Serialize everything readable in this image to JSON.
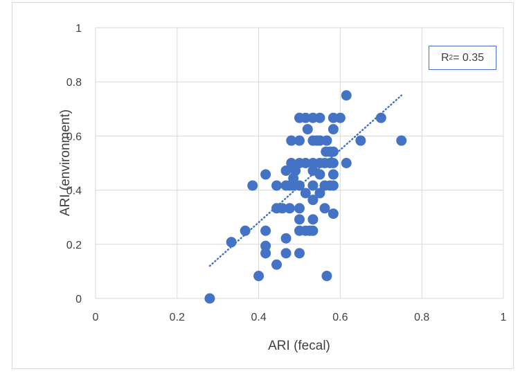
{
  "chart_data": {
    "type": "scatter",
    "xlabel": "ARI (fecal)",
    "ylabel": "ARI (environment)",
    "xlim": [
      0,
      1
    ],
    "ylim": [
      0,
      1
    ],
    "xticks": [
      "0",
      "0.2",
      "0.4",
      "0.6",
      "0.8",
      "1"
    ],
    "yticks": [
      "0",
      "0.2",
      "0.4",
      "0.6",
      "0.8",
      "1"
    ],
    "grid": true,
    "marker_color": "#4472c4",
    "trendline": {
      "type": "linear",
      "style": "dotted",
      "from": [
        0.28,
        0.12
      ],
      "to": [
        0.75,
        0.75
      ]
    },
    "annotation": {
      "r2_prefix": "R",
      "r2_sup": "2",
      "r2_value": " = 0.35"
    },
    "points": [
      [
        0.28,
        0.0
      ],
      [
        0.333,
        0.208
      ],
      [
        0.367,
        0.25
      ],
      [
        0.385,
        0.417
      ],
      [
        0.4,
        0.083
      ],
      [
        0.417,
        0.167
      ],
      [
        0.417,
        0.194
      ],
      [
        0.417,
        0.25
      ],
      [
        0.417,
        0.458
      ],
      [
        0.444,
        0.125
      ],
      [
        0.444,
        0.333
      ],
      [
        0.444,
        0.417
      ],
      [
        0.458,
        0.333
      ],
      [
        0.467,
        0.167
      ],
      [
        0.467,
        0.222
      ],
      [
        0.467,
        0.417
      ],
      [
        0.467,
        0.472
      ],
      [
        0.476,
        0.333
      ],
      [
        0.476,
        0.417
      ],
      [
        0.48,
        0.5
      ],
      [
        0.48,
        0.583
      ],
      [
        0.485,
        0.444
      ],
      [
        0.485,
        0.417
      ],
      [
        0.49,
        0.472
      ],
      [
        0.5,
        0.167
      ],
      [
        0.5,
        0.25
      ],
      [
        0.5,
        0.292
      ],
      [
        0.5,
        0.333
      ],
      [
        0.5,
        0.417
      ],
      [
        0.5,
        0.5
      ],
      [
        0.5,
        0.583
      ],
      [
        0.5,
        0.667
      ],
      [
        0.515,
        0.25
      ],
      [
        0.515,
        0.389
      ],
      [
        0.515,
        0.5
      ],
      [
        0.515,
        0.667
      ],
      [
        0.52,
        0.625
      ],
      [
        0.525,
        0.25
      ],
      [
        0.533,
        0.25
      ],
      [
        0.533,
        0.292
      ],
      [
        0.533,
        0.364
      ],
      [
        0.533,
        0.417
      ],
      [
        0.533,
        0.472
      ],
      [
        0.533,
        0.5
      ],
      [
        0.533,
        0.583
      ],
      [
        0.533,
        0.667
      ],
      [
        0.542,
        0.583
      ],
      [
        0.55,
        0.389
      ],
      [
        0.55,
        0.458
      ],
      [
        0.55,
        0.5
      ],
      [
        0.55,
        0.583
      ],
      [
        0.55,
        0.667
      ],
      [
        0.562,
        0.333
      ],
      [
        0.562,
        0.417
      ],
      [
        0.562,
        0.5
      ],
      [
        0.565,
        0.542
      ],
      [
        0.567,
        0.083
      ],
      [
        0.567,
        0.583
      ],
      [
        0.575,
        0.5
      ],
      [
        0.575,
        0.417
      ],
      [
        0.575,
        0.542
      ],
      [
        0.583,
        0.313
      ],
      [
        0.583,
        0.417
      ],
      [
        0.583,
        0.458
      ],
      [
        0.583,
        0.5
      ],
      [
        0.583,
        0.542
      ],
      [
        0.583,
        0.625
      ],
      [
        0.583,
        0.667
      ],
      [
        0.6,
        0.667
      ],
      [
        0.615,
        0.75
      ],
      [
        0.615,
        0.5
      ],
      [
        0.65,
        0.583
      ],
      [
        0.7,
        0.667
      ],
      [
        0.75,
        0.583
      ]
    ]
  }
}
